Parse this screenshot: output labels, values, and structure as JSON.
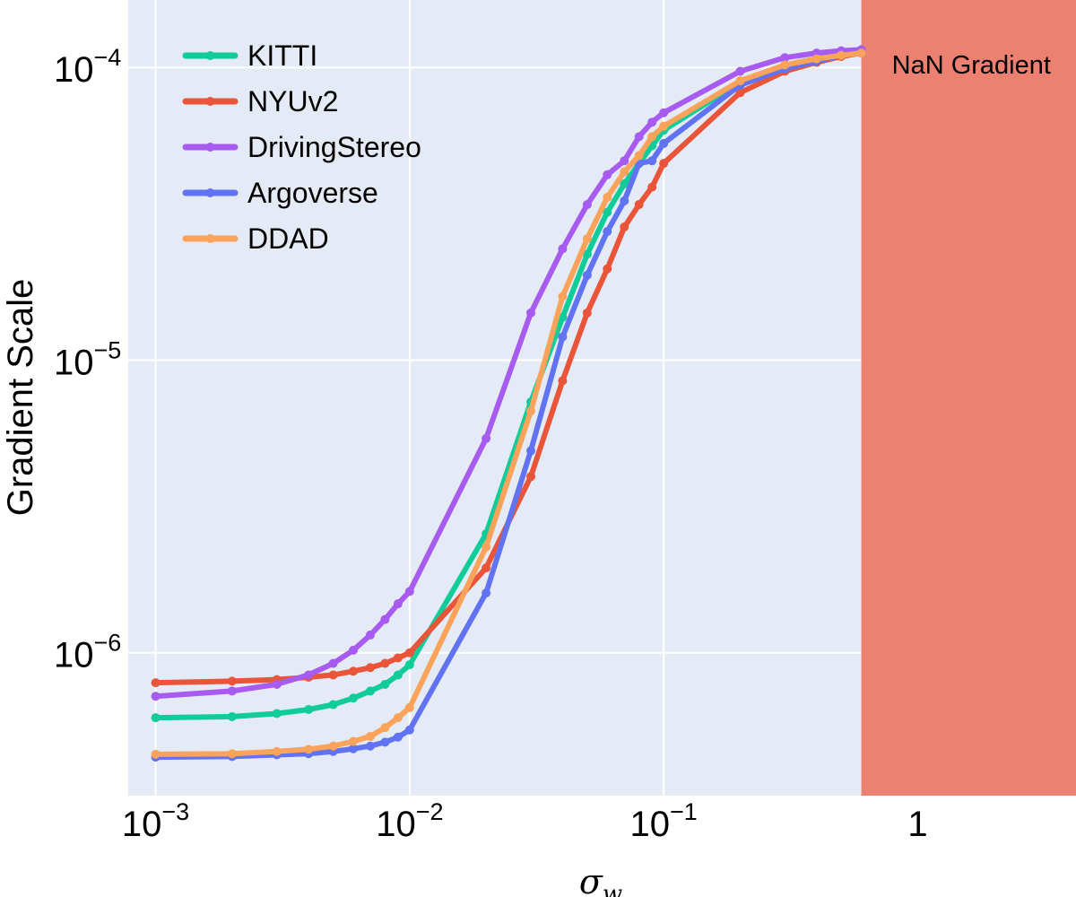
{
  "chart_data": {
    "type": "line",
    "title": "",
    "xlabel": "σ",
    "xlabel_sub": "w",
    "ylabel": "Gradient Scale",
    "xscale": "log",
    "yscale": "log",
    "xlim": [
      0.00078,
      4.2
    ],
    "ylim": [
      3.25e-07,
      0.00017
    ],
    "x_ticks": [
      {
        "value": 0.001,
        "base": "10",
        "exp": "−3"
      },
      {
        "value": 0.01,
        "base": "10",
        "exp": "−2"
      },
      {
        "value": 0.1,
        "base": "10",
        "exp": "−1"
      },
      {
        "value": 1,
        "base": "1",
        "exp": ""
      }
    ],
    "y_ticks": [
      {
        "value": 1e-06,
        "base": "10",
        "exp": "−6"
      },
      {
        "value": 1e-05,
        "base": "10",
        "exp": "−5"
      },
      {
        "value": 0.0001,
        "base": "10",
        "exp": "−4"
      }
    ],
    "grid": true,
    "legend_position": "top-left",
    "shaded_region": {
      "x_from": 0.6,
      "x_to": 4.2,
      "label": "NaN Gradient",
      "color": "#ec8172"
    },
    "x": [
      0.001,
      0.002,
      0.003,
      0.004,
      0.005,
      0.006,
      0.007,
      0.008,
      0.009,
      0.01,
      0.02,
      0.03,
      0.04,
      0.05,
      0.06,
      0.07,
      0.08,
      0.09,
      0.1,
      0.2,
      0.3,
      0.4,
      0.5,
      0.6
    ],
    "series": [
      {
        "name": "KITTI",
        "color": "#0fcc99",
        "values": [
          6e-07,
          6.05e-07,
          6.2e-07,
          6.4e-07,
          6.65e-07,
          7e-07,
          7.4e-07,
          7.8e-07,
          8.4e-07,
          9.1e-07,
          2.55e-06,
          7.2e-06,
          1.4e-05,
          2.3e-05,
          3.2e-05,
          4e-05,
          4.7e-05,
          5.4e-05,
          6.1e-05,
          8.9e-05,
          0.000102,
          0.000107,
          0.00011,
          0.000112
        ]
      },
      {
        "name": "NYUv2",
        "color": "#ea5439",
        "values": [
          7.9e-07,
          8e-07,
          8.1e-07,
          8.25e-07,
          8.4e-07,
          8.65e-07,
          8.9e-07,
          9.2e-07,
          9.6e-07,
          1e-06,
          1.95e-06,
          4e-06,
          8.5e-06,
          1.45e-05,
          2.05e-05,
          2.85e-05,
          3.4e-05,
          3.9e-05,
          4.7e-05,
          8.2e-05,
          9.7e-05,
          0.000104,
          0.000109,
          0.000112
        ]
      },
      {
        "name": "DrivingStereo",
        "color": "#a75bf0",
        "values": [
          7.1e-07,
          7.4e-07,
          7.8e-07,
          8.4e-07,
          9.2e-07,
          1.02e-06,
          1.15e-06,
          1.3e-06,
          1.47e-06,
          1.62e-06,
          5.4e-06,
          1.45e-05,
          2.4e-05,
          3.4e-05,
          4.3e-05,
          4.8e-05,
          5.8e-05,
          6.5e-05,
          7e-05,
          9.7e-05,
          0.000108,
          0.000112,
          0.000114,
          0.000115
        ]
      },
      {
        "name": "Argoverse",
        "color": "#6173f2",
        "values": [
          4.4e-07,
          4.42e-07,
          4.48e-07,
          4.52e-07,
          4.6e-07,
          4.7e-07,
          4.8e-07,
          4.95e-07,
          5.15e-07,
          5.45e-07,
          1.6e-06,
          4.9e-06,
          1.2e-05,
          1.95e-05,
          2.75e-05,
          3.5e-05,
          4.7e-05,
          4.8e-05,
          5.5e-05,
          8.7e-05,
          9.9e-05,
          0.000105,
          0.00011,
          0.000112
        ]
      },
      {
        "name": "DDAD",
        "color": "#fba25b",
        "values": [
          4.5e-07,
          4.52e-07,
          4.6e-07,
          4.68e-07,
          4.8e-07,
          4.98e-07,
          5.18e-07,
          5.55e-07,
          6e-07,
          6.5e-07,
          2.3e-06,
          6.7e-06,
          1.65e-05,
          2.6e-05,
          3.6e-05,
          4.4e-05,
          5e-05,
          5.8e-05,
          6.3e-05,
          9e-05,
          0.000102,
          0.000107,
          0.00011,
          0.000112
        ]
      }
    ]
  }
}
